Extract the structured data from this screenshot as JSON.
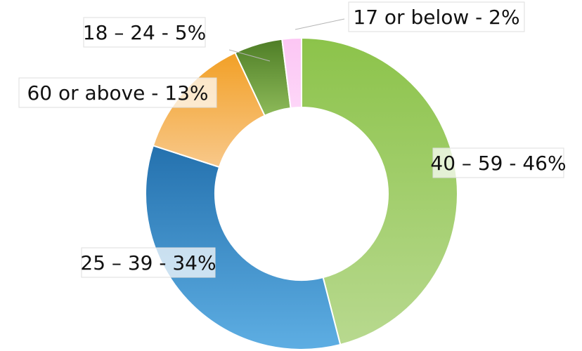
{
  "chart_data": {
    "type": "pie",
    "variant": "donut",
    "categories": [
      "40 – 59",
      "25 – 39",
      "60 or above",
      "18 – 24",
      "17 or below"
    ],
    "values": [
      46,
      34,
      13,
      5,
      2
    ],
    "unit": "%",
    "labels": [
      "40 – 59 - 46%",
      "25 – 39 - 34%",
      "60 or above - 13%",
      "18 – 24 - 5%",
      "17 or below - 2%"
    ],
    "colors": [
      "#8cc34a",
      "#2471ae",
      "#f2a026",
      "#4e7d26",
      "#fcc6f4"
    ],
    "colors_light": [
      "#b8d98f",
      "#5eaee3",
      "#f8c88a",
      "#8dba59",
      "#fdd6f8"
    ],
    "legend": "none",
    "start_angle": "12 o'clock",
    "direction": "clockwise"
  }
}
